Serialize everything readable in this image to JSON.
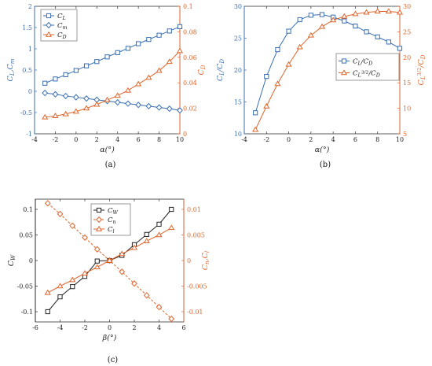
{
  "colors": {
    "blue": "#3a6fb3",
    "orange": "#e0652b",
    "black": "#222222",
    "axis": "#333333",
    "grid": "#dddddd"
  },
  "chart_data": [
    {
      "id": "a",
      "type": "line",
      "caption": "(a)",
      "xlabel": "α(°)",
      "xlim": [
        -4,
        10
      ],
      "xticks": [
        -4,
        -2,
        0,
        2,
        4,
        6,
        8,
        10
      ],
      "left_axis": {
        "label": "C_L,C_m",
        "ylim": [
          -1,
          2
        ],
        "ticks": [
          -1,
          -0.5,
          0,
          0.5,
          1,
          1.5,
          2
        ],
        "tick_labels": [
          "-1",
          "-0.5",
          "0",
          "0.5",
          "1",
          "1.5",
          "2"
        ]
      },
      "right_axis": {
        "label": "C_D",
        "ylim": [
          0,
          0.1
        ],
        "ticks": [
          0,
          0.02,
          0.04,
          0.06,
          0.08,
          0.1
        ],
        "tick_labels": [
          "0",
          "0.02",
          "0.04",
          "0.06",
          "0.08",
          "0.1"
        ]
      },
      "legend": "top-left",
      "x": [
        -3,
        -2,
        -1,
        0,
        1,
        2,
        3,
        4,
        5,
        6,
        7,
        8,
        9,
        10
      ],
      "series": [
        {
          "name": "C_L",
          "axis": "left",
          "color": "blue",
          "marker": "square",
          "values": [
            0.19,
            0.29,
            0.39,
            0.49,
            0.6,
            0.7,
            0.81,
            0.91,
            1.01,
            1.12,
            1.22,
            1.32,
            1.42,
            1.52
          ]
        },
        {
          "name": "C_m",
          "axis": "left",
          "color": "blue",
          "marker": "diamond",
          "values": [
            -0.04,
            -0.07,
            -0.11,
            -0.14,
            -0.17,
            -0.2,
            -0.23,
            -0.26,
            -0.29,
            -0.32,
            -0.35,
            -0.38,
            -0.41,
            -0.45
          ]
        },
        {
          "name": "C_D",
          "axis": "right",
          "color": "orange",
          "marker": "triangle",
          "values": [
            0.013,
            0.014,
            0.0155,
            0.0175,
            0.02,
            0.023,
            0.0265,
            0.03,
            0.034,
            0.039,
            0.044,
            0.0495,
            0.0565,
            0.065
          ]
        }
      ]
    },
    {
      "id": "b",
      "type": "line",
      "caption": "(b)",
      "xlabel": "α(°)",
      "xlim": [
        -4,
        10
      ],
      "xticks": [
        -4,
        -2,
        0,
        2,
        4,
        6,
        8,
        10
      ],
      "left_axis": {
        "label": "C_L/C_D",
        "ylim": [
          10,
          30
        ],
        "ticks": [
          10,
          15,
          20,
          25,
          30
        ],
        "tick_labels": [
          "10",
          "15",
          "20",
          "25",
          "30"
        ]
      },
      "right_axis": {
        "label": "C_L^{3/2}/C_D",
        "ylim": [
          5,
          30
        ],
        "ticks": [
          5,
          10,
          15,
          20,
          25,
          30
        ],
        "tick_labels": [
          "5",
          "10",
          "15",
          "20",
          "25",
          "30"
        ]
      },
      "legend": "center-right",
      "x": [
        -3,
        -2,
        -1,
        0,
        1,
        2,
        3,
        4,
        5,
        6,
        7,
        8,
        9,
        10
      ],
      "series": [
        {
          "name": "C_L/C_D",
          "axis": "left",
          "color": "blue",
          "marker": "square",
          "values": [
            13.3,
            19.0,
            23.2,
            26.1,
            27.9,
            28.6,
            28.7,
            28.3,
            27.7,
            26.9,
            26.0,
            25.2,
            24.4,
            23.4
          ]
        },
        {
          "name": "C_L^{3/2}/C_D",
          "axis": "right",
          "color": "orange",
          "marker": "triangle",
          "values": [
            5.8,
            10.4,
            14.8,
            18.6,
            22.0,
            24.3,
            26.0,
            27.3,
            28.0,
            28.5,
            28.8,
            29.0,
            29.0,
            28.8
          ]
        }
      ]
    },
    {
      "id": "c",
      "type": "line",
      "caption": "(c)",
      "xlabel": "β(°)",
      "xlim": [
        -6,
        6
      ],
      "xticks": [
        -6,
        -4,
        -2,
        0,
        2,
        4,
        6
      ],
      "left_axis": {
        "label": "C_W",
        "ylim": [
          -0.12,
          0.12
        ],
        "ticks": [
          -0.1,
          -0.05,
          0,
          0.05,
          0.1
        ],
        "tick_labels": [
          "-0.1",
          "-0.05",
          "0",
          "0.05",
          "0.1"
        ]
      },
      "right_axis": {
        "label": "C_n,C_l",
        "ylim": [
          -0.012,
          0.012
        ],
        "ticks": [
          -0.01,
          -0.005,
          0,
          0.005,
          0.01
        ],
        "tick_labels": [
          "-0.01",
          "-0.005",
          "0",
          "0.005",
          "0.01"
        ]
      },
      "legend": "top-left",
      "x": [
        -5,
        -4,
        -3,
        -2,
        -1,
        0,
        1,
        2,
        3,
        4,
        5
      ],
      "series": [
        {
          "name": "C_W",
          "axis": "left",
          "color": "black",
          "marker": "square",
          "values": [
            -0.1,
            -0.071,
            -0.051,
            -0.031,
            -0.001,
            0,
            0.01,
            0.031,
            0.051,
            0.071,
            0.1
          ]
        },
        {
          "name": "C_n",
          "axis": "right",
          "color": "orange",
          "marker": "diamond",
          "dashed": true,
          "values": [
            0.0112,
            0.0091,
            0.0068,
            0.0045,
            0.0022,
            0,
            -0.0022,
            -0.0045,
            -0.0068,
            -0.0091,
            -0.0114
          ]
        },
        {
          "name": "C_l",
          "axis": "right",
          "color": "orange",
          "marker": "triangle",
          "values": [
            -0.0063,
            -0.005,
            -0.0038,
            -0.0025,
            -0.0013,
            0,
            0.0013,
            0.0025,
            0.0038,
            0.005,
            0.0064
          ]
        }
      ]
    }
  ]
}
